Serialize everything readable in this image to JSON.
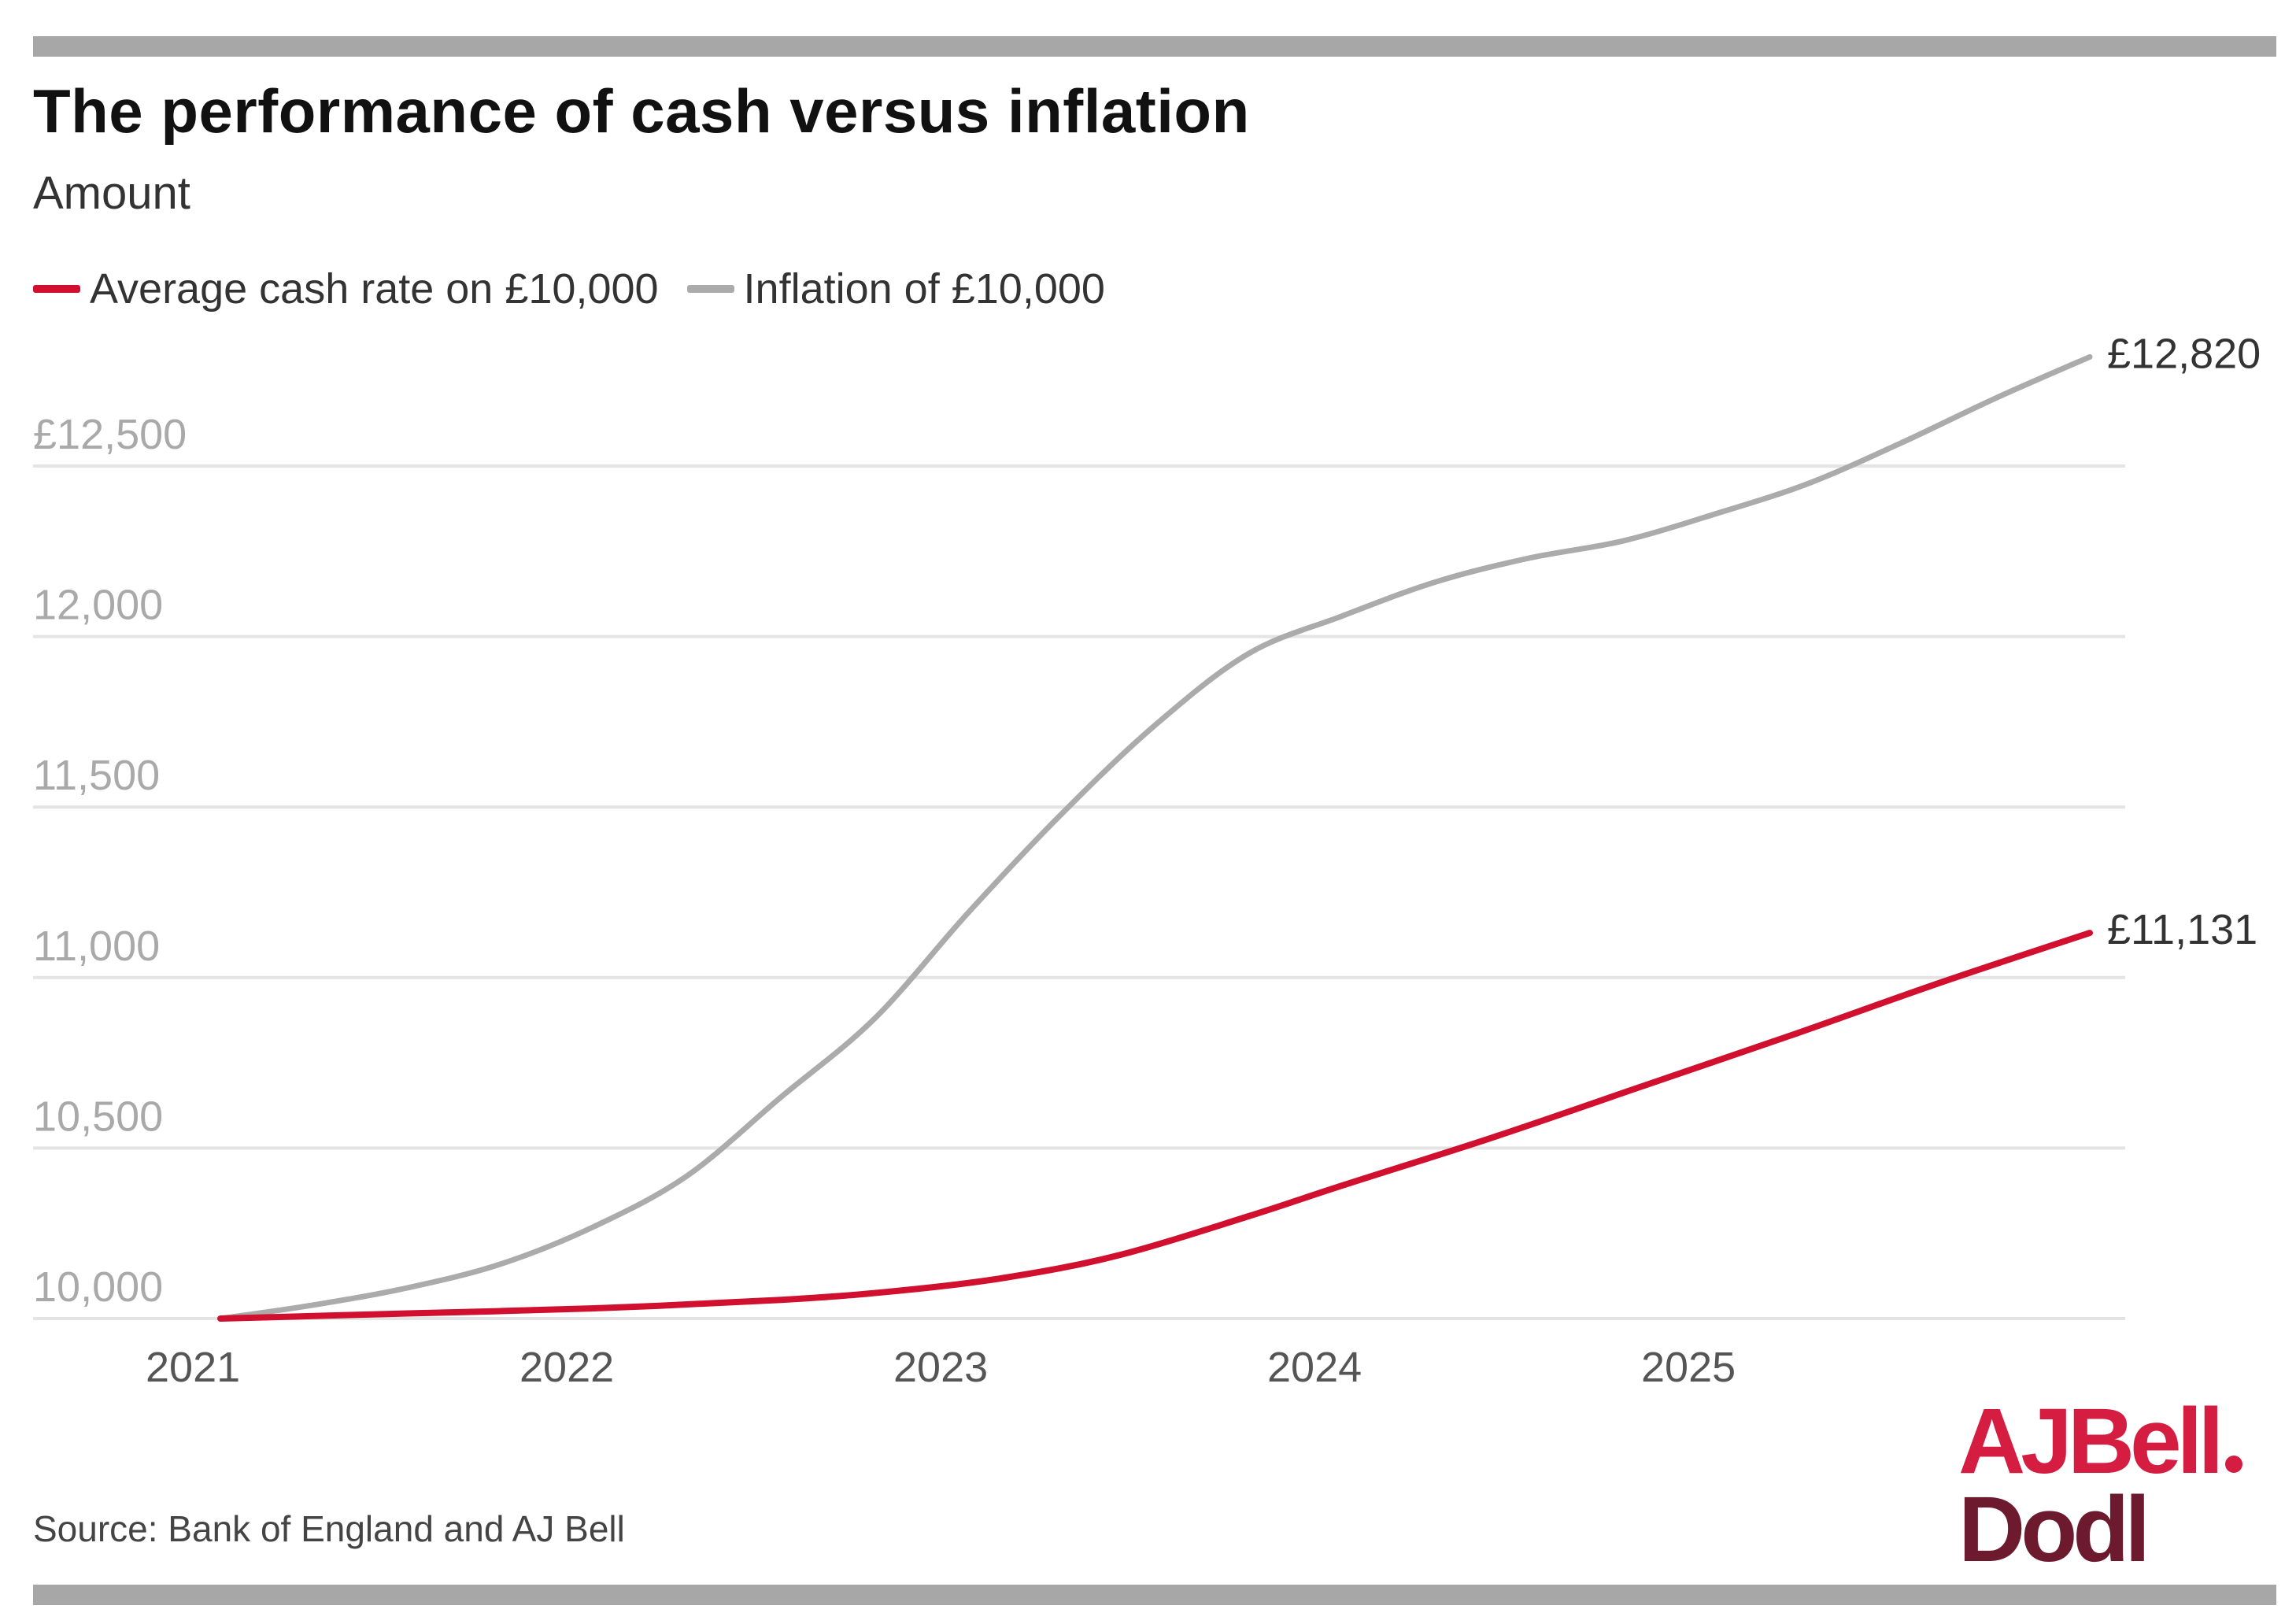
{
  "colors": {
    "cash": "#d0102e",
    "inflation": "#ababab",
    "grid": "#e4e4e4",
    "tick": "#a9a9a9",
    "xtick": "#555555",
    "end_label": "#333333"
  },
  "footer": {
    "source": "Source: Bank of England and AJ Bell"
  },
  "logo": {
    "line1": "AJBell",
    "line2": "Dodl"
  },
  "chart_data": {
    "type": "line",
    "title": "The performance of cash versus inflation",
    "subtitle": "Amount",
    "ylim": [
      10000,
      12800
    ],
    "xlim": [
      2021,
      2026.2
    ],
    "yticks": [
      10000,
      10500,
      11000,
      11500,
      12000,
      12500
    ],
    "ytick_labels": [
      "10,000",
      "10,500",
      "11,000",
      "11,500",
      "12,000",
      "£12,500"
    ],
    "xticks": [
      2021,
      2022,
      2023,
      2024,
      2025
    ],
    "xtick_labels": [
      "2021",
      "2022",
      "2023",
      "2024",
      "2025"
    ],
    "grid": true,
    "legend_position": "top-left",
    "series": [
      {
        "name": "Average cash rate on £10,000",
        "color_key": "cash",
        "end_label": "£11,131",
        "x": [
          2021.0,
          2021.5,
          2022.0,
          2022.5,
          2022.8,
          2023.1,
          2023.4,
          2023.75,
          2024.0,
          2024.4,
          2024.8,
          2025.2,
          2025.6,
          2026.0
        ],
        "y": [
          10000,
          10015,
          10030,
          10055,
          10080,
          10120,
          10185,
          10300,
          10390,
          10530,
          10680,
          10830,
          10985,
          11131
        ]
      },
      {
        "name": "Inflation of £10,000",
        "color_key": "inflation",
        "end_label": "£12,820",
        "x": [
          2021.0,
          2021.25,
          2021.5,
          2021.75,
          2022.0,
          2022.25,
          2022.5,
          2022.75,
          2023.0,
          2023.25,
          2023.5,
          2023.75,
          2024.0,
          2024.25,
          2024.5,
          2024.75,
          2025.0,
          2025.25,
          2025.5,
          2025.75,
          2026.0
        ],
        "y": [
          10000,
          10040,
          10090,
          10160,
          10270,
          10420,
          10650,
          10880,
          11190,
          11480,
          11740,
          11950,
          12060,
          12160,
          12230,
          12280,
          12360,
          12450,
          12570,
          12700,
          12820
        ]
      }
    ]
  }
}
